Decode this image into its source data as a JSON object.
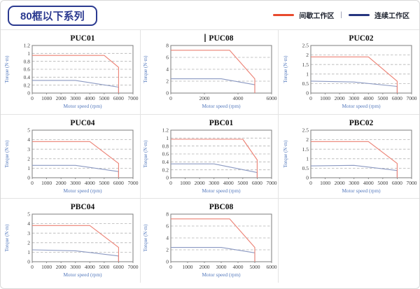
{
  "header": {
    "series_title": "80框以下系列",
    "legend": [
      {
        "label": "间歇工作区",
        "color": "#e84a2d"
      },
      {
        "label": "连续工作区",
        "color": "#26357f"
      }
    ],
    "legend_separator": "|"
  },
  "style": {
    "accent_navy": "#2b3a90",
    "curve_red": "#ec8174",
    "curve_blue": "#8b99c2",
    "plot_border": "#7d7d7d",
    "gridline": "#b3b3b3",
    "tick_color": "#3c3c3c",
    "axis_label_color": "#5479bd",
    "title_color": "#101010",
    "cell_border": "#e3e3e3"
  },
  "chart_data": [
    {
      "type": "line",
      "title": "PUC01",
      "caret": false,
      "xlabel": "Motor speed (rpm)",
      "ylabel": "Torque (N·m)",
      "xlim": [
        0,
        7000
      ],
      "ylim": [
        0,
        1.2
      ],
      "xticks": [
        0,
        1000,
        2000,
        3000,
        4000,
        5000,
        6000,
        7000
      ],
      "yticks": [
        0,
        0.2,
        0.4,
        0.6,
        0.8,
        1,
        1.2
      ],
      "grid": "dashed-horizontal",
      "legend_position": "none",
      "series": [
        {
          "name": "间歇工作区",
          "color": "#ec8174",
          "points": [
            [
              0,
              0.95
            ],
            [
              5000,
              0.95
            ],
            [
              6000,
              0.65
            ],
            [
              6000,
              0
            ]
          ]
        },
        {
          "name": "连续工作区",
          "color": "#8b99c2",
          "points": [
            [
              0,
              0.32
            ],
            [
              3000,
              0.32
            ],
            [
              6000,
              0.15
            ],
            [
              6000,
              0
            ]
          ]
        }
      ]
    },
    {
      "type": "line",
      "title": "PUC08",
      "caret": true,
      "xlabel": "Motor speed (rpm)",
      "ylabel": "Torque (N·m)",
      "xlim": [
        0,
        6000
      ],
      "ylim": [
        0,
        8
      ],
      "xticks": [
        0,
        2000,
        4000,
        6000
      ],
      "yticks": [
        0,
        2,
        4,
        6,
        8
      ],
      "grid": "dashed-horizontal",
      "legend_position": "none",
      "series": [
        {
          "name": "间歇工作区",
          "color": "#ec8174",
          "points": [
            [
              0,
              7.2
            ],
            [
              3500,
              7.2
            ],
            [
              5000,
              2.4
            ],
            [
              5000,
              0
            ]
          ]
        },
        {
          "name": "连续工作区",
          "color": "#8b99c2",
          "points": [
            [
              0,
              2.4
            ],
            [
              3000,
              2.4
            ],
            [
              5000,
              1.4
            ],
            [
              5000,
              0
            ]
          ]
        }
      ]
    },
    {
      "type": "line",
      "title": "PUC02",
      "caret": false,
      "xlabel": "Motor speed (rpm)",
      "ylabel": "Torque (N·m)",
      "xlim": [
        0,
        7000
      ],
      "ylim": [
        0,
        2.5
      ],
      "xticks": [
        0,
        1000,
        2000,
        3000,
        4000,
        5000,
        6000,
        7000
      ],
      "yticks": [
        0,
        0.5,
        1,
        1.5,
        2,
        2.5
      ],
      "grid": "dashed-horizontal",
      "legend_position": "none",
      "series": [
        {
          "name": "间歇工作区",
          "color": "#ec8174",
          "points": [
            [
              0,
              1.9
            ],
            [
              4000,
              1.9
            ],
            [
              6000,
              0.62
            ],
            [
              6000,
              0
            ]
          ]
        },
        {
          "name": "连续工作区",
          "color": "#8b99c2",
          "points": [
            [
              0,
              0.63
            ],
            [
              3000,
              0.58
            ],
            [
              6000,
              0.35
            ],
            [
              6000,
              0
            ]
          ]
        }
      ]
    },
    {
      "type": "line",
      "title": "PUC04",
      "caret": false,
      "xlabel": "Motor speed (rpm)",
      "ylabel": "Torque (N·m)",
      "xlim": [
        0,
        7000
      ],
      "ylim": [
        0,
        5
      ],
      "xticks": [
        0,
        1000,
        2000,
        3000,
        4000,
        5000,
        6000,
        7000
      ],
      "yticks": [
        0,
        1,
        2,
        3,
        4,
        5
      ],
      "grid": "dashed-horizontal",
      "legend_position": "none",
      "series": [
        {
          "name": "间歇工作区",
          "color": "#ec8174",
          "points": [
            [
              0,
              3.8
            ],
            [
              4000,
              3.8
            ],
            [
              6000,
              1.5
            ],
            [
              6000,
              0
            ]
          ]
        },
        {
          "name": "连续工作区",
          "color": "#8b99c2",
          "points": [
            [
              0,
              1.3
            ],
            [
              3000,
              1.3
            ],
            [
              6000,
              0.65
            ],
            [
              6000,
              0
            ]
          ]
        }
      ]
    },
    {
      "type": "line",
      "title": "PBC01",
      "caret": false,
      "xlabel": "Motor speed (rpm)",
      "ylabel": "Torque (N·m)",
      "xlim": [
        0,
        7000
      ],
      "ylim": [
        0,
        1.2
      ],
      "xticks": [
        0,
        1000,
        2000,
        3000,
        4000,
        5000,
        6000,
        7000
      ],
      "yticks": [
        0,
        0.2,
        0.4,
        0.6,
        0.8,
        1,
        1.2
      ],
      "grid": "dashed-horizontal",
      "legend_position": "none",
      "series": [
        {
          "name": "间歇工作区",
          "color": "#ec8174",
          "points": [
            [
              0,
              0.97
            ],
            [
              5000,
              0.97
            ],
            [
              6000,
              0.45
            ],
            [
              6000,
              0
            ]
          ]
        },
        {
          "name": "连续工作区",
          "color": "#8b99c2",
          "points": [
            [
              0,
              0.35
            ],
            [
              3000,
              0.35
            ],
            [
              6000,
              0.13
            ],
            [
              6000,
              0
            ]
          ]
        }
      ]
    },
    {
      "type": "line",
      "title": "PBC02",
      "caret": false,
      "xlabel": "Motor speed (rpm)",
      "ylabel": "Torque (N·m)",
      "xlim": [
        0,
        7000
      ],
      "ylim": [
        0,
        2.5
      ],
      "xticks": [
        0,
        1000,
        2000,
        3000,
        4000,
        5000,
        6000,
        7000
      ],
      "yticks": [
        0,
        0.5,
        1,
        1.5,
        2,
        2.5
      ],
      "grid": "dashed-horizontal",
      "legend_position": "none",
      "series": [
        {
          "name": "间歇工作区",
          "color": "#ec8174",
          "points": [
            [
              0,
              1.9
            ],
            [
              4000,
              1.9
            ],
            [
              6000,
              0.75
            ],
            [
              6000,
              0
            ]
          ]
        },
        {
          "name": "连续工作区",
          "color": "#8b99c2",
          "points": [
            [
              0,
              0.62
            ],
            [
              3000,
              0.65
            ],
            [
              6000,
              0.38
            ],
            [
              6000,
              0
            ]
          ]
        }
      ]
    },
    {
      "type": "line",
      "title": "PBC04",
      "caret": false,
      "xlabel": "Motor speed (rpm)",
      "ylabel": "Torque (N·m)",
      "xlim": [
        0,
        7000
      ],
      "ylim": [
        0,
        5
      ],
      "xticks": [
        0,
        1000,
        2000,
        3000,
        4000,
        5000,
        6000,
        7000
      ],
      "yticks": [
        0,
        1,
        2,
        3,
        4,
        5
      ],
      "grid": "dashed-horizontal",
      "legend_position": "none",
      "series": [
        {
          "name": "间歇工作区",
          "color": "#ec8174",
          "points": [
            [
              0,
              3.8
            ],
            [
              4000,
              3.8
            ],
            [
              6000,
              1.5
            ],
            [
              6000,
              0
            ]
          ]
        },
        {
          "name": "连续工作区",
          "color": "#8b99c2",
          "points": [
            [
              0,
              1.25
            ],
            [
              3000,
              1.15
            ],
            [
              6000,
              0.6
            ],
            [
              6000,
              0
            ]
          ]
        }
      ]
    },
    {
      "type": "line",
      "title": "PBC08",
      "caret": false,
      "xlabel": "Motor speed (rpm)",
      "ylabel": "Torque (N·m)",
      "xlim": [
        0,
        6000
      ],
      "ylim": [
        0,
        8
      ],
      "xticks": [
        0,
        1000,
        2000,
        3000,
        4000,
        5000,
        6000
      ],
      "yticks": [
        0,
        2,
        4,
        6,
        8
      ],
      "grid": "dashed-horizontal",
      "legend_position": "none",
      "series": [
        {
          "name": "间歇工作区",
          "color": "#ec8174",
          "points": [
            [
              0,
              7.2
            ],
            [
              3500,
              7.2
            ],
            [
              5000,
              2.4
            ],
            [
              5000,
              0
            ]
          ]
        },
        {
          "name": "连续工作区",
          "color": "#8b99c2",
          "points": [
            [
              0,
              2.4
            ],
            [
              3000,
              2.4
            ],
            [
              5000,
              1.5
            ],
            [
              5000,
              0
            ]
          ]
        }
      ]
    }
  ]
}
